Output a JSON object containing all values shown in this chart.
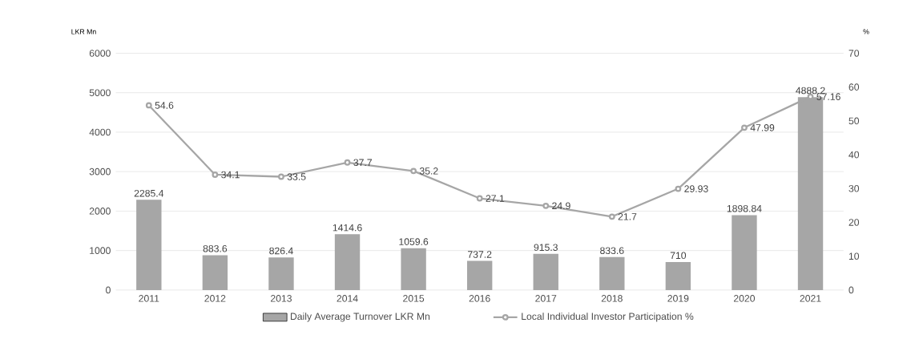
{
  "chart_data": {
    "type": "bar",
    "ylabel": "LKR Mn",
    "y2label": "%",
    "categories": [
      "2011",
      "2012",
      "2013",
      "2014",
      "2015",
      "2016",
      "2017",
      "2018",
      "2019",
      "2020",
      "2021"
    ],
    "series": [
      {
        "name": "Daily Average Turnover LKR Mn",
        "type": "bar",
        "color": "#a6a6a6",
        "values": [
          2285.4,
          883.6,
          826.4,
          1414.6,
          1059.6,
          737.2,
          915.3,
          833.6,
          710,
          1898.84,
          4888.2
        ]
      },
      {
        "name": "Local Individual Investor Participation %",
        "type": "line",
        "axis": "y2",
        "color": "#a6a6a6",
        "marker": "circle",
        "values": [
          54.6,
          34.1,
          33.5,
          37.7,
          35.2,
          27.1,
          24.9,
          21.7,
          29.93,
          47.99,
          57.16
        ]
      }
    ],
    "ylim": [
      0,
      6000
    ],
    "yticks": [
      0,
      1000,
      2000,
      3000,
      4000,
      5000,
      6000
    ],
    "y2lim": [
      0,
      70
    ],
    "y2ticks": [
      0,
      10,
      20,
      30,
      40,
      50,
      60,
      70
    ],
    "grid": "y",
    "legend": "bottom",
    "data_labels": true
  }
}
